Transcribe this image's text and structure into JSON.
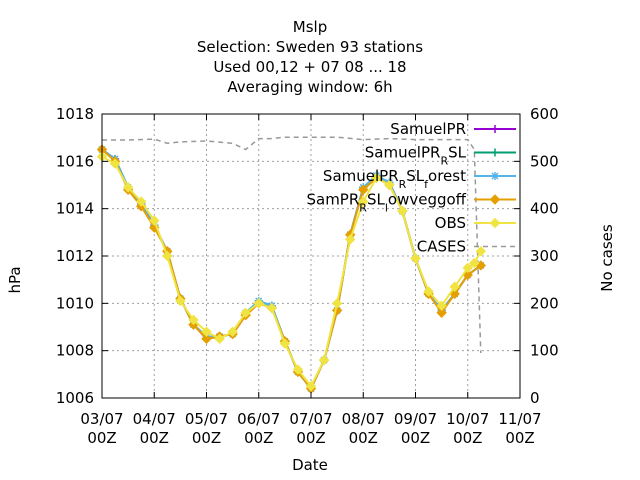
{
  "chart_data": {
    "type": "line",
    "title_lines": [
      "Mslp",
      "Selection: Sweden     93 stations",
      "Used  00,12  + 07 08 ... 18",
      "Averaging window:  6h"
    ],
    "xlabel": "Date",
    "ylabel": "hPa",
    "y2label": "No cases",
    "x_ticks": [
      {
        "date": "03/07",
        "time": "00Z"
      },
      {
        "date": "04/07",
        "time": "00Z"
      },
      {
        "date": "05/07",
        "time": "00Z"
      },
      {
        "date": "06/07",
        "time": "00Z"
      },
      {
        "date": "07/07",
        "time": "00Z"
      },
      {
        "date": "08/07",
        "time": "00Z"
      },
      {
        "date": "09/07",
        "time": "00Z"
      },
      {
        "date": "10/07",
        "time": "00Z"
      },
      {
        "date": "11/07",
        "time": "00Z"
      }
    ],
    "y_ticks": [
      1006,
      1008,
      1010,
      1012,
      1014,
      1016,
      1018
    ],
    "y2_ticks": [
      0,
      100,
      200,
      300,
      400,
      500,
      600
    ],
    "ylim": [
      1006,
      1018
    ],
    "y2lim": [
      0,
      600
    ],
    "grid": true,
    "legend_position": "top-right",
    "series": [
      {
        "name": "SamuelPR",
        "color": "#9400d3",
        "marker": "plus",
        "x": [
          "03/07 00Z",
          "03/07 06Z",
          "03/07 12Z",
          "03/07 18Z",
          "04/07 00Z",
          "04/07 06Z",
          "04/07 12Z",
          "04/07 18Z",
          "05/07 00Z",
          "05/07 06Z",
          "05/07 12Z",
          "05/07 18Z",
          "06/07 00Z",
          "06/07 06Z",
          "06/07 12Z",
          "06/07 18Z",
          "07/07 00Z",
          "07/07 06Z",
          "07/07 12Z",
          "07/07 18Z",
          "08/07 00Z",
          "08/07 06Z",
          "08/07 12Z",
          "08/07 18Z",
          "09/07 00Z",
          "09/07 06Z",
          "09/07 12Z",
          "09/07 18Z",
          "10/07 00Z",
          "10/07 06Z"
        ],
        "y": [
          1016.5,
          1016.1,
          1014.9,
          1014.2,
          1013.3,
          1012.2,
          1010.2,
          1009.1,
          1008.5,
          1008.6,
          1008.7,
          1009.5,
          1010.0,
          1009.8,
          1008.4,
          1007.1,
          1006.4,
          1007.6,
          1009.7,
          1012.9,
          1014.9,
          1015.3,
          1015.1,
          1013.9,
          1011.9,
          1010.4,
          1009.7,
          1010.4,
          1011.2,
          1011.6
        ]
      },
      {
        "name": "SamuelPR_RSL",
        "color": "#009e73",
        "marker": "plus",
        "x": [
          "03/07 00Z",
          "03/07 06Z",
          "03/07 12Z",
          "03/07 18Z",
          "04/07 00Z",
          "04/07 06Z",
          "04/07 12Z",
          "04/07 18Z",
          "05/07 00Z",
          "05/07 06Z",
          "05/07 12Z",
          "05/07 18Z",
          "06/07 00Z",
          "06/07 06Z",
          "06/07 12Z",
          "06/07 18Z",
          "07/07 00Z",
          "07/07 06Z",
          "07/07 12Z",
          "07/07 18Z",
          "08/07 00Z",
          "08/07 06Z",
          "08/07 12Z",
          "08/07 18Z",
          "09/07 00Z",
          "09/07 06Z",
          "09/07 12Z",
          "09/07 18Z",
          "10/07 00Z",
          "10/07 06Z"
        ],
        "y": [
          1016.5,
          1016.1,
          1014.9,
          1014.2,
          1013.3,
          1012.2,
          1010.2,
          1009.1,
          1008.6,
          1008.6,
          1008.7,
          1009.6,
          1010.1,
          1009.9,
          1008.4,
          1007.1,
          1006.4,
          1007.6,
          1009.7,
          1012.9,
          1014.9,
          1015.4,
          1015.1,
          1013.9,
          1011.9,
          1010.4,
          1009.7,
          1010.4,
          1011.2,
          1011.6
        ]
      },
      {
        "name": "SamuelPR_RSL_forest",
        "color": "#56b4e9",
        "marker": "star",
        "x": [
          "03/07 00Z",
          "03/07 06Z",
          "03/07 12Z",
          "03/07 18Z",
          "04/07 00Z",
          "04/07 06Z",
          "04/07 12Z",
          "04/07 18Z",
          "05/07 00Z",
          "05/07 06Z",
          "05/07 12Z",
          "05/07 18Z",
          "06/07 00Z",
          "06/07 06Z",
          "06/07 12Z",
          "06/07 18Z",
          "07/07 00Z",
          "07/07 06Z",
          "07/07 12Z",
          "07/07 18Z",
          "08/07 00Z",
          "08/07 06Z",
          "08/07 12Z",
          "08/07 18Z",
          "09/07 00Z",
          "09/07 06Z",
          "09/07 12Z",
          "09/07 18Z",
          "10/07 00Z",
          "10/07 06Z"
        ],
        "y": [
          1016.5,
          1016.1,
          1014.9,
          1014.2,
          1013.3,
          1012.2,
          1010.2,
          1009.1,
          1008.6,
          1008.6,
          1008.7,
          1009.6,
          1010.1,
          1009.9,
          1008.4,
          1007.1,
          1006.4,
          1007.6,
          1009.7,
          1012.9,
          1014.9,
          1015.4,
          1015.1,
          1013.9,
          1011.9,
          1010.4,
          1009.7,
          1010.4,
          1011.2,
          1011.6
        ]
      },
      {
        "name": "SamPR_RSL_lowveggoff",
        "color": "#e69f00",
        "marker": "diamond",
        "x": [
          "03/07 00Z",
          "03/07 06Z",
          "03/07 12Z",
          "03/07 18Z",
          "04/07 00Z",
          "04/07 06Z",
          "04/07 12Z",
          "04/07 18Z",
          "05/07 00Z",
          "05/07 06Z",
          "05/07 12Z",
          "05/07 18Z",
          "06/07 00Z",
          "06/07 06Z",
          "06/07 12Z",
          "06/07 18Z",
          "07/07 00Z",
          "07/07 06Z",
          "07/07 12Z",
          "07/07 18Z",
          "08/07 00Z",
          "08/07 06Z",
          "08/07 12Z",
          "08/07 18Z",
          "09/07 00Z",
          "09/07 06Z",
          "09/07 12Z",
          "09/07 18Z",
          "10/07 00Z",
          "10/07 06Z"
        ],
        "y": [
          1016.5,
          1016.0,
          1014.8,
          1014.1,
          1013.2,
          1012.2,
          1010.2,
          1009.1,
          1008.5,
          1008.6,
          1008.7,
          1009.5,
          1010.0,
          1009.8,
          1008.4,
          1007.1,
          1006.4,
          1007.6,
          1009.7,
          1012.9,
          1014.8,
          1015.3,
          1015.0,
          1013.9,
          1011.9,
          1010.4,
          1009.6,
          1010.4,
          1011.2,
          1011.6
        ]
      },
      {
        "name": "OBS",
        "color": "#f0e442",
        "marker": "diamond",
        "x": [
          "03/07 00Z",
          "03/07 06Z",
          "03/07 12Z",
          "03/07 18Z",
          "04/07 00Z",
          "04/07 06Z",
          "04/07 12Z",
          "04/07 18Z",
          "05/07 00Z",
          "05/07 06Z",
          "05/07 12Z",
          "05/07 18Z",
          "06/07 00Z",
          "06/07 06Z",
          "06/07 12Z",
          "06/07 18Z",
          "07/07 00Z",
          "07/07 06Z",
          "07/07 12Z",
          "07/07 18Z",
          "08/07 00Z",
          "08/07 06Z",
          "08/07 12Z",
          "08/07 18Z",
          "09/07 00Z",
          "09/07 06Z",
          "09/07 12Z",
          "09/07 18Z",
          "10/07 00Z",
          "10/07 03Z",
          "10/07 06Z"
        ],
        "y": [
          1016.2,
          1015.9,
          1014.9,
          1014.3,
          1013.5,
          1012.0,
          1010.1,
          1009.3,
          1008.8,
          1008.5,
          1008.8,
          1009.6,
          1010.0,
          1009.8,
          1008.3,
          1007.2,
          1006.5,
          1007.6,
          1010.0,
          1012.7,
          1014.3,
          1015.3,
          1015.0,
          1013.9,
          1011.9,
          1010.5,
          1009.9,
          1010.7,
          1011.5,
          1011.7,
          1012.2
        ]
      },
      {
        "name": "CASES",
        "color": "#999999",
        "dashed": true,
        "axis": "y2",
        "x": [
          "03/07 00Z",
          "03/07 12Z",
          "04/07 00Z",
          "04/07 06Z",
          "04/07 12Z",
          "05/07 00Z",
          "05/07 12Z",
          "05/07 18Z",
          "06/07 00Z",
          "06/07 06Z",
          "06/07 12Z",
          "07/07 00Z",
          "07/07 12Z",
          "08/07 00Z",
          "08/07 12Z",
          "09/07 00Z",
          "09/07 12Z",
          "10/07 00Z",
          "10/07 03Z",
          "10/07 06Z"
        ],
        "y": [
          545,
          545,
          547,
          538,
          541,
          543,
          538,
          525,
          548,
          548,
          551,
          551,
          551,
          546,
          548,
          546,
          546,
          546,
          525,
          95
        ]
      }
    ]
  }
}
